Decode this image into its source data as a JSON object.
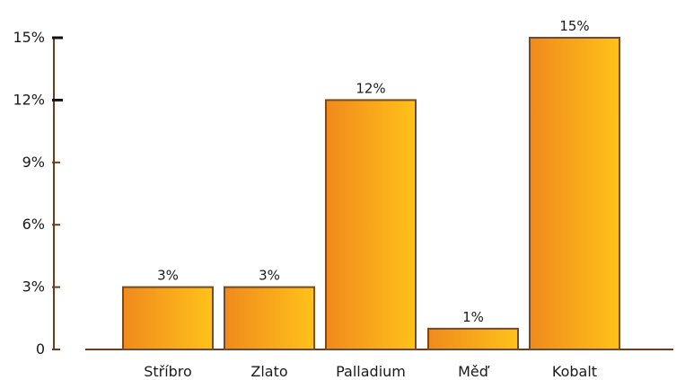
{
  "chart_data": {
    "type": "bar",
    "categories": [
      "Stříbro",
      "Zlato",
      "Palladium",
      "Měď",
      "Kobalt"
    ],
    "values": [
      3,
      3,
      12,
      1,
      15
    ],
    "value_labels": [
      "3%",
      "3%",
      "12%",
      "1%",
      "15%"
    ],
    "y_ticks": [
      0,
      3,
      6,
      9,
      12,
      15
    ],
    "y_tick_labels": [
      "0",
      "3%",
      "6%",
      "9%",
      "12%",
      "15%"
    ],
    "ylim": [
      0,
      15
    ],
    "grid": false,
    "title": "",
    "xlabel": "",
    "ylabel": ""
  },
  "colors": {
    "bar_start": "#f08a1c",
    "bar_end": "#ffc21a",
    "bar_border": "#7a4a1a",
    "axis": "#6b3d1a",
    "major_tick": "#111111"
  }
}
